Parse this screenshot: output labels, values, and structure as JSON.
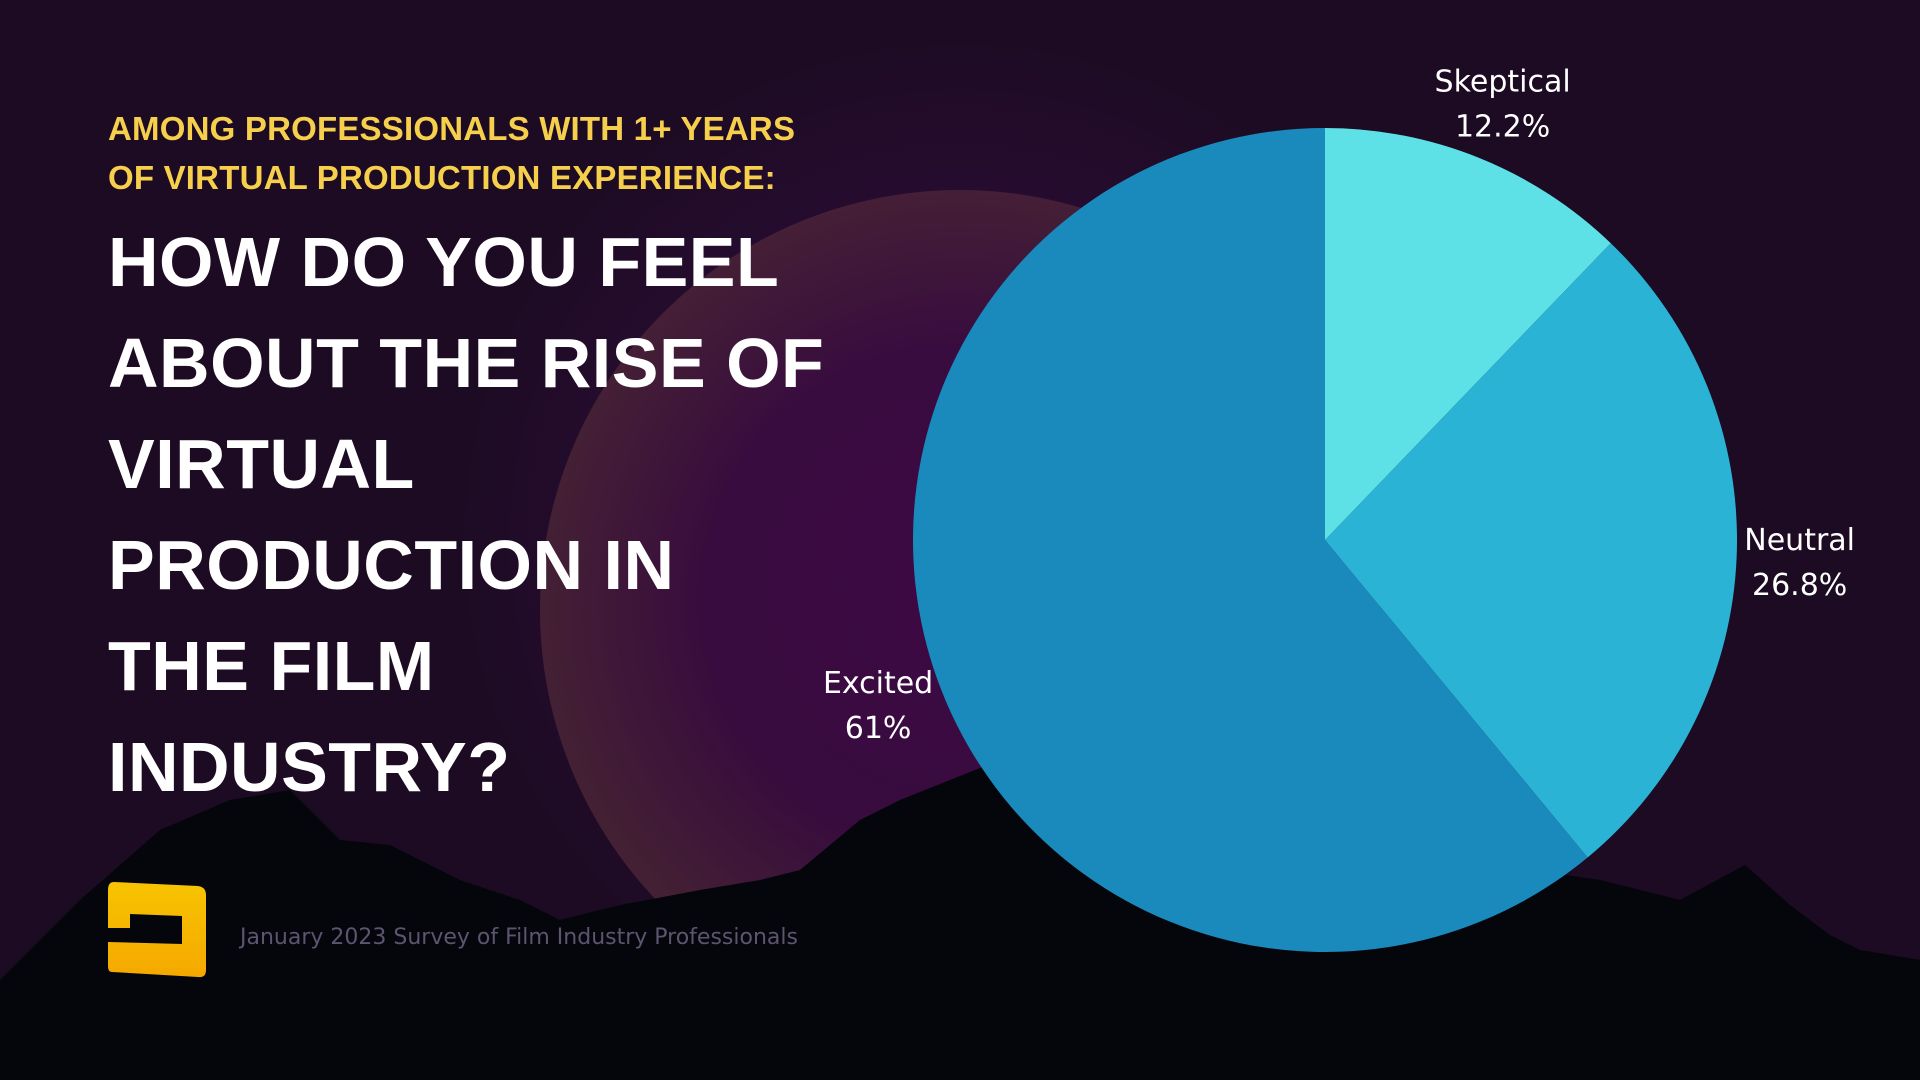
{
  "subtitle": {
    "line1": "AMONG PROFESSIONALS WITH 1+ YEARS",
    "line2": "OF VIRTUAL PRODUCTION EXPERIENCE:"
  },
  "title": {
    "line1": "HOW DO YOU FEEL",
    "line2": "ABOUT THE RISE OF",
    "line3": "VIRTUAL",
    "line4": "PRODUCTION IN",
    "line5": "THE FILM",
    "line6": "INDUSTRY?"
  },
  "footnote": "January 2023 Survey of Film Industry Professionals",
  "colors": {
    "subtitle": "#f6d04d",
    "title": "#ffffff",
    "skeptical": "#5ee1e6",
    "neutral": "#2bb3d6",
    "excited": "#1a8abd",
    "logo": "#f5b800"
  },
  "chart_data": {
    "type": "pie",
    "title": "HOW DO YOU FEEL ABOUT THE RISE OF VIRTUAL PRODUCTION IN THE FILM INDUSTRY?",
    "start_angle": "12 o'clock",
    "direction": "clockwise",
    "slices": [
      {
        "name": "Skeptical",
        "value": 12.2,
        "value_label": "12.2%",
        "color": "#5ee1e6"
      },
      {
        "name": "Neutral",
        "value": 26.8,
        "value_label": "26.8%",
        "color": "#2bb3d6"
      },
      {
        "name": "Excited",
        "value": 61,
        "value_label": "61%",
        "color": "#1a8abd"
      }
    ]
  }
}
